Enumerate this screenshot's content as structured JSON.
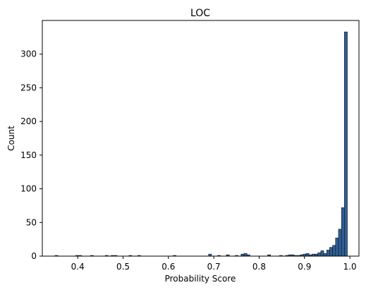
{
  "chart_data": {
    "type": "bar",
    "title": "LOC",
    "xlabel": "Probability Score",
    "ylabel": "Count",
    "xlim": [
      0.322,
      1.02
    ],
    "ylim": [
      0,
      350
    ],
    "xticks": [
      0.4,
      0.5,
      0.6,
      0.7,
      0.8,
      0.9,
      1.0
    ],
    "xtick_labels": [
      "0.4",
      "0.5",
      "0.6",
      "0.7",
      "0.8",
      "0.9",
      "1.0"
    ],
    "yticks": [
      0,
      50,
      100,
      150,
      200,
      250,
      300
    ],
    "ytick_labels": [
      "0",
      "50",
      "100",
      "150",
      "200",
      "250",
      "300"
    ],
    "grid": false,
    "bar_color": "#2f5f98",
    "edge_color": "#111111",
    "bin_width": 0.00651,
    "bin_starts": [
      0.35,
      0.3956,
      0.4021,
      0.4281,
      0.4607,
      0.4737,
      0.4802,
      0.5128,
      0.5323,
      0.6104,
      0.6885,
      0.7081,
      0.7276,
      0.7471,
      0.7601,
      0.7666,
      0.7731,
      0.8187,
      0.8447,
      0.8578,
      0.8643,
      0.8708,
      0.8773,
      0.8838,
      0.8903,
      0.8968,
      0.9033,
      0.9098,
      0.9163,
      0.9228,
      0.9293,
      0.9359,
      0.9424,
      0.9489,
      0.9554,
      0.9619,
      0.9684,
      0.9749,
      0.9814,
      0.9879,
      0.9944
    ],
    "values": [
      1,
      1,
      1,
      1,
      1,
      1,
      1,
      1,
      1,
      1,
      3,
      1,
      2,
      1,
      3,
      4,
      2,
      2,
      1,
      1,
      2,
      2,
      1,
      1,
      2,
      3,
      4,
      2,
      3,
      3,
      5,
      8,
      4,
      9,
      13,
      16,
      27,
      40,
      72,
      333,
      0
    ]
  }
}
